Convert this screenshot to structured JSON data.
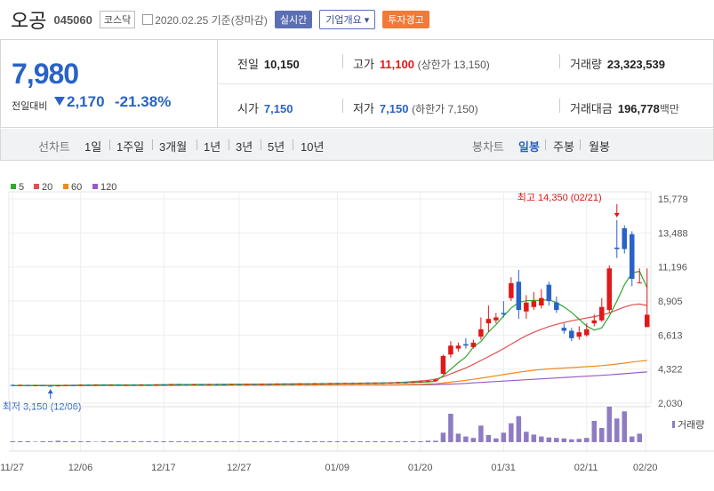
{
  "header": {
    "name": "오공",
    "code": "045060",
    "market": "코스닥",
    "date": "2020.02.25 기준(장마감)",
    "btn_realtime": "실시간",
    "btn_company": "기업개요 ▾",
    "btn_warning": "투자경고"
  },
  "price": {
    "current": "7,980",
    "change_label": "전일대비",
    "change": "2,170",
    "change_pct": "-21.38%"
  },
  "stats": {
    "prev_label": "전일",
    "prev": "10,150",
    "high_label": "고가",
    "high": "11,100",
    "upper_limit": "(상한가 13,150)",
    "volume_label": "거래량",
    "volume": "23,323,539",
    "open_label": "시가",
    "open": "7,150",
    "low_label": "저가",
    "low": "7,150",
    "lower_limit": "(하한가 7,150)",
    "amount_label": "거래대금",
    "amount": "196,778",
    "amount_unit": "백만"
  },
  "tabs": {
    "line_chart": "선차트",
    "periods": [
      "1일",
      "1주일",
      "3개월",
      "1년",
      "3년",
      "5년",
      "10년"
    ],
    "candle_chart": "봉차트",
    "candle_periods": [
      "일봉",
      "주봉",
      "월봉"
    ],
    "active_candle": "일봉"
  },
  "colors": {
    "up": "#e01818",
    "down": "#2a63c7",
    "ma5": "#2ea82e",
    "ma20": "#e05050",
    "ma60": "#f08a1e",
    "ma120": "#9b59c6"
  },
  "chart_data": {
    "type": "candlestick",
    "legend": [
      {
        "name": "5",
        "color": "#2ea82e"
      },
      {
        "name": "20",
        "color": "#e05050"
      },
      {
        "name": "60",
        "color": "#f08a1e"
      },
      {
        "name": "120",
        "color": "#9b59c6"
      }
    ],
    "y_ticks": [
      "15,779",
      "13,488",
      "11,196",
      "8,905",
      "6,613",
      "4,322",
      "2,030"
    ],
    "ylim": [
      2030,
      15779
    ],
    "x_ticks": [
      "11/27",
      "12/06",
      "12/17",
      "12/27",
      "01/09",
      "01/20",
      "01/31",
      "02/11",
      "02/20"
    ],
    "high_annotation": "최고 14,350 (02/21)",
    "low_annotation": "최저 3,150 (12/06)",
    "volume_label": "거래량",
    "candles": [
      {
        "i": 0,
        "o": 3250,
        "c": 3200,
        "h": 3300,
        "l": 3180
      },
      {
        "i": 1,
        "o": 3220,
        "c": 3250,
        "h": 3280,
        "l": 3190
      },
      {
        "i": 2,
        "o": 3240,
        "c": 3210,
        "h": 3270,
        "l": 3180
      },
      {
        "i": 3,
        "o": 3210,
        "c": 3230,
        "h": 3260,
        "l": 3190
      },
      {
        "i": 4,
        "o": 3230,
        "c": 3200,
        "h": 3250,
        "l": 3170
      },
      {
        "i": 5,
        "o": 3200,
        "c": 3180,
        "h": 3230,
        "l": 3150
      },
      {
        "i": 6,
        "o": 3180,
        "c": 3220,
        "h": 3250,
        "l": 3150
      },
      {
        "i": 7,
        "o": 3220,
        "c": 3240,
        "h": 3270,
        "l": 3200
      },
      {
        "i": 8,
        "o": 3240,
        "c": 3230,
        "h": 3270,
        "l": 3210
      },
      {
        "i": 9,
        "o": 3230,
        "c": 3260,
        "h": 3290,
        "l": 3210
      },
      {
        "i": 10,
        "o": 3260,
        "c": 3250,
        "h": 3290,
        "l": 3230
      },
      {
        "i": 11,
        "o": 3250,
        "c": 3270,
        "h": 3300,
        "l": 3230
      },
      {
        "i": 12,
        "o": 3270,
        "c": 3250,
        "h": 3290,
        "l": 3230
      },
      {
        "i": 13,
        "o": 3250,
        "c": 3260,
        "h": 3280,
        "l": 3230
      },
      {
        "i": 14,
        "o": 3260,
        "c": 3240,
        "h": 3280,
        "l": 3220
      },
      {
        "i": 15,
        "o": 3240,
        "c": 3260,
        "h": 3290,
        "l": 3220
      },
      {
        "i": 16,
        "o": 3260,
        "c": 3250,
        "h": 3280,
        "l": 3230
      },
      {
        "i": 17,
        "o": 3250,
        "c": 3270,
        "h": 3300,
        "l": 3230
      },
      {
        "i": 18,
        "o": 3270,
        "c": 3260,
        "h": 3290,
        "l": 3240
      },
      {
        "i": 19,
        "o": 3260,
        "c": 3280,
        "h": 3300,
        "l": 3240
      },
      {
        "i": 20,
        "o": 3280,
        "c": 3270,
        "h": 3310,
        "l": 3250
      },
      {
        "i": 21,
        "o": 3270,
        "c": 3300,
        "h": 3330,
        "l": 3250
      },
      {
        "i": 22,
        "o": 3300,
        "c": 3280,
        "h": 3330,
        "l": 3260
      },
      {
        "i": 23,
        "o": 3280,
        "c": 3270,
        "h": 3310,
        "l": 3250
      },
      {
        "i": 24,
        "o": 3270,
        "c": 3290,
        "h": 3320,
        "l": 3250
      },
      {
        "i": 25,
        "o": 3290,
        "c": 3280,
        "h": 3320,
        "l": 3260
      },
      {
        "i": 26,
        "o": 3280,
        "c": 3300,
        "h": 3330,
        "l": 3260
      },
      {
        "i": 27,
        "o": 3300,
        "c": 3290,
        "h": 3330,
        "l": 3270
      },
      {
        "i": 28,
        "o": 3290,
        "c": 3280,
        "h": 3320,
        "l": 3260
      },
      {
        "i": 29,
        "o": 3280,
        "c": 3300,
        "h": 3330,
        "l": 3260
      },
      {
        "i": 30,
        "o": 3300,
        "c": 3290,
        "h": 3330,
        "l": 3270
      },
      {
        "i": 31,
        "o": 3290,
        "c": 3310,
        "h": 3340,
        "l": 3270
      },
      {
        "i": 32,
        "o": 3310,
        "c": 3300,
        "h": 3340,
        "l": 3280
      },
      {
        "i": 33,
        "o": 3300,
        "c": 3320,
        "h": 3350,
        "l": 3280
      },
      {
        "i": 34,
        "o": 3320,
        "c": 3300,
        "h": 3350,
        "l": 3280
      },
      {
        "i": 35,
        "o": 3300,
        "c": 3330,
        "h": 3360,
        "l": 3290
      },
      {
        "i": 36,
        "o": 3330,
        "c": 3320,
        "h": 3360,
        "l": 3300
      },
      {
        "i": 37,
        "o": 3320,
        "c": 3310,
        "h": 3350,
        "l": 3290
      },
      {
        "i": 38,
        "o": 3310,
        "c": 3340,
        "h": 3370,
        "l": 3290
      },
      {
        "i": 39,
        "o": 3340,
        "c": 3330,
        "h": 3370,
        "l": 3310
      },
      {
        "i": 40,
        "o": 3330,
        "c": 3350,
        "h": 3380,
        "l": 3310
      },
      {
        "i": 41,
        "o": 3350,
        "c": 3340,
        "h": 3380,
        "l": 3320
      },
      {
        "i": 42,
        "o": 3340,
        "c": 3360,
        "h": 3390,
        "l": 3320
      },
      {
        "i": 43,
        "o": 3360,
        "c": 3350,
        "h": 3390,
        "l": 3330
      },
      {
        "i": 44,
        "o": 3350,
        "c": 3370,
        "h": 3400,
        "l": 3330
      },
      {
        "i": 45,
        "o": 3370,
        "c": 3360,
        "h": 3400,
        "l": 3340
      },
      {
        "i": 46,
        "o": 3360,
        "c": 3380,
        "h": 3410,
        "l": 3340
      },
      {
        "i": 47,
        "o": 3380,
        "c": 3370,
        "h": 3410,
        "l": 3350
      },
      {
        "i": 48,
        "o": 3370,
        "c": 3390,
        "h": 3420,
        "l": 3350
      },
      {
        "i": 49,
        "o": 3390,
        "c": 3380,
        "h": 3420,
        "l": 3360
      },
      {
        "i": 50,
        "o": 3380,
        "c": 3400,
        "h": 3430,
        "l": 3360
      },
      {
        "i": 51,
        "o": 3400,
        "c": 3420,
        "h": 3460,
        "l": 3370
      },
      {
        "i": 52,
        "o": 3420,
        "c": 3410,
        "h": 3460,
        "l": 3380
      },
      {
        "i": 53,
        "o": 3410,
        "c": 3450,
        "h": 3500,
        "l": 3390
      },
      {
        "i": 54,
        "o": 3450,
        "c": 3480,
        "h": 3560,
        "l": 3420
      },
      {
        "i": 55,
        "o": 3480,
        "c": 3520,
        "h": 3600,
        "l": 3450
      },
      {
        "i": 56,
        "o": 3520,
        "c": 3600,
        "h": 3700,
        "l": 3480
      },
      {
        "i": 57,
        "o": 4000,
        "c": 5200,
        "h": 5300,
        "l": 3950
      },
      {
        "i": 58,
        "o": 5300,
        "c": 5900,
        "h": 6200,
        "l": 5100
      },
      {
        "i": 59,
        "o": 5700,
        "c": 5900,
        "h": 6100,
        "l": 5500
      },
      {
        "i": 60,
        "o": 6000,
        "c": 5900,
        "h": 6400,
        "l": 5700
      },
      {
        "i": 61,
        "o": 5800,
        "c": 6100,
        "h": 6300,
        "l": 5700
      },
      {
        "i": 62,
        "o": 6500,
        "c": 7000,
        "h": 7800,
        "l": 6300
      },
      {
        "i": 63,
        "o": 7400,
        "c": 7700,
        "h": 8600,
        "l": 6800
      },
      {
        "i": 64,
        "o": 7600,
        "c": 7800,
        "h": 8100,
        "l": 7400
      },
      {
        "i": 65,
        "o": 8100,
        "c": 8000,
        "h": 8900,
        "l": 7800
      },
      {
        "i": 66,
        "o": 9100,
        "c": 10100,
        "h": 10500,
        "l": 8900
      },
      {
        "i": 67,
        "o": 10200,
        "c": 8300,
        "h": 11000,
        "l": 7700
      },
      {
        "i": 68,
        "o": 8200,
        "c": 8800,
        "h": 9300,
        "l": 7700
      },
      {
        "i": 69,
        "o": 8500,
        "c": 8900,
        "h": 9500,
        "l": 8300
      },
      {
        "i": 70,
        "o": 8600,
        "c": 9100,
        "h": 9700,
        "l": 8400
      },
      {
        "i": 71,
        "o": 10000,
        "c": 8900,
        "h": 10200,
        "l": 8600
      },
      {
        "i": 72,
        "o": 8800,
        "c": 8300,
        "h": 9200,
        "l": 8100
      },
      {
        "i": 73,
        "o": 7100,
        "c": 6900,
        "h": 7400,
        "l": 6700
      },
      {
        "i": 74,
        "o": 6900,
        "c": 6400,
        "h": 7100,
        "l": 6200
      },
      {
        "i": 75,
        "o": 6500,
        "c": 6800,
        "h": 7200,
        "l": 6300
      },
      {
        "i": 76,
        "o": 6600,
        "c": 7000,
        "h": 7400,
        "l": 6500
      },
      {
        "i": 77,
        "o": 7400,
        "c": 7600,
        "h": 8000,
        "l": 7200
      },
      {
        "i": 78,
        "o": 7600,
        "c": 8500,
        "h": 9100,
        "l": 7500
      },
      {
        "i": 79,
        "o": 8300,
        "c": 11100,
        "h": 11300,
        "l": 8100
      },
      {
        "i": 80,
        "o": 12500,
        "c": 12400,
        "h": 14350,
        "l": 11800
      },
      {
        "i": 81,
        "o": 13800,
        "c": 12400,
        "h": 14000,
        "l": 12100
      },
      {
        "i": 82,
        "o": 13400,
        "c": 10400,
        "h": 13600,
        "l": 9900
      },
      {
        "i": 83,
        "o": 10150,
        "c": 10150,
        "h": 11100,
        "l": 10150
      },
      {
        "i": 84,
        "o": 7150,
        "c": 7980,
        "h": 11100,
        "l": 7150
      }
    ],
    "volume": [
      2,
      2,
      2,
      1,
      2,
      2,
      3,
      2,
      2,
      2,
      2,
      1,
      2,
      2,
      2,
      2,
      2,
      2,
      2,
      2,
      2,
      2,
      2,
      2,
      2,
      2,
      2,
      2,
      2,
      2,
      2,
      2,
      2,
      2,
      2,
      2,
      2,
      2,
      2,
      2,
      2,
      2,
      2,
      2,
      2,
      2,
      2,
      2,
      2,
      2,
      2,
      2,
      2,
      2,
      2,
      3,
      3,
      20,
      60,
      18,
      12,
      9,
      35,
      15,
      8,
      20,
      40,
      55,
      22,
      16,
      12,
      10,
      9,
      8,
      6,
      7,
      9,
      45,
      30,
      75,
      50,
      65,
      12,
      18
    ],
    "ma5": [
      3215,
      3225,
      3222,
      3226,
      3222,
      3218,
      3217,
      3220,
      3224,
      3236,
      3244,
      3252,
      3256,
      3256,
      3254,
      3250,
      3254,
      3256,
      3258,
      3268,
      3272,
      3282,
      3284,
      3282,
      3284,
      3284,
      3284,
      3288,
      3290,
      3290,
      3290,
      3296,
      3296,
      3304,
      3304,
      3312,
      3314,
      3316,
      3324,
      3326,
      3330,
      3338,
      3342,
      3348,
      3352,
      3358,
      3362,
      3366,
      3372,
      3376,
      3384,
      3394,
      3404,
      3420,
      3436,
      3456,
      3500,
      3870,
      4310,
      4750,
      5140,
      5800,
      6180,
      6820,
      7320,
      7900,
      8430,
      8800,
      8920,
      8940,
      8950,
      8980,
      8800,
      8500,
      8140,
      7680,
      7220,
      6940,
      7100,
      7900,
      8900,
      10000,
      10800,
      10900,
      9800
    ],
    "ma20": [
      3215,
      3218,
      3220,
      3222,
      3223,
      3224,
      3225,
      3226,
      3228,
      3230,
      3232,
      3234,
      3236,
      3238,
      3240,
      3242,
      3244,
      3246,
      3248,
      3250,
      3254,
      3258,
      3262,
      3266,
      3270,
      3274,
      3278,
      3282,
      3286,
      3290,
      3294,
      3298,
      3302,
      3306,
      3310,
      3314,
      3318,
      3322,
      3326,
      3330,
      3336,
      3342,
      3348,
      3354,
      3360,
      3366,
      3372,
      3378,
      3384,
      3392,
      3400,
      3420,
      3440,
      3480,
      3520,
      3560,
      3640,
      3800,
      4000,
      4200,
      4400,
      4640,
      4900,
      5160,
      5420,
      5700,
      6000,
      6300,
      6560,
      6800,
      7000,
      7180,
      7330,
      7460,
      7570,
      7670,
      7760,
      7850,
      7960,
      8100,
      8300,
      8500,
      8650,
      8700,
      8600
    ],
    "ma60": [
      3210,
      3211,
      3212,
      3213,
      3214,
      3215,
      3216,
      3217,
      3218,
      3219,
      3220,
      3221,
      3222,
      3223,
      3224,
      3225,
      3226,
      3227,
      3228,
      3229,
      3230,
      3231,
      3232,
      3233,
      3234,
      3235,
      3236,
      3237,
      3238,
      3239,
      3240,
      3241,
      3242,
      3243,
      3244,
      3245,
      3246,
      3247,
      3248,
      3249,
      3250,
      3252,
      3254,
      3256,
      3258,
      3260,
      3262,
      3264,
      3266,
      3268,
      3270,
      3275,
      3280,
      3290,
      3300,
      3320,
      3340,
      3380,
      3440,
      3500,
      3560,
      3630,
      3710,
      3790,
      3870,
      3950,
      4030,
      4110,
      4180,
      4240,
      4290,
      4330,
      4360,
      4390,
      4420,
      4450,
      4480,
      4510,
      4550,
      4600,
      4660,
      4720,
      4790,
      4850,
      4900
    ],
    "ma120": [
      3200,
      3201,
      3202,
      3203,
      3204,
      3205,
      3206,
      3207,
      3208,
      3209,
      3210,
      3211,
      3212,
      3213,
      3214,
      3215,
      3216,
      3217,
      3218,
      3219,
      3220,
      3221,
      3222,
      3223,
      3224,
      3225,
      3226,
      3227,
      3228,
      3229,
      3230,
      3231,
      3232,
      3233,
      3234,
      3235,
      3236,
      3237,
      3238,
      3239,
      3240,
      3241,
      3242,
      3243,
      3244,
      3245,
      3246,
      3247,
      3248,
      3249,
      3250,
      3252,
      3254,
      3257,
      3260,
      3264,
      3270,
      3290,
      3310,
      3330,
      3360,
      3390,
      3420,
      3450,
      3480,
      3510,
      3540,
      3570,
      3600,
      3630,
      3660,
      3690,
      3720,
      3750,
      3780,
      3810,
      3840,
      3870,
      3900,
      3930,
      3970,
      4010,
      4050,
      4090,
      4130
    ]
  }
}
